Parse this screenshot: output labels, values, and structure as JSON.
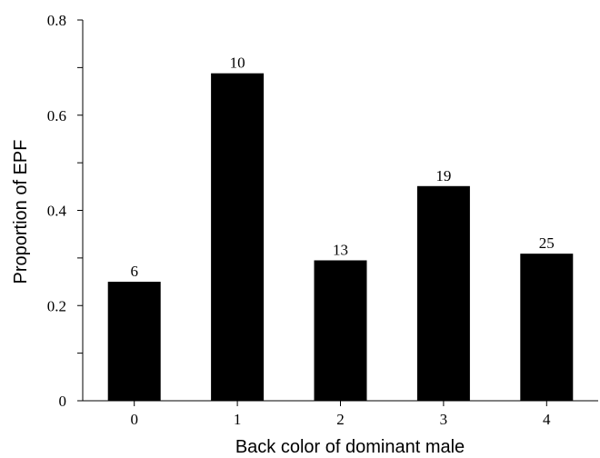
{
  "chart_data": {
    "type": "bar",
    "xlabel": "Back color of dominant male",
    "ylabel": "Proportion of EPF",
    "categories": [
      "0",
      "1",
      "2",
      "3",
      "4"
    ],
    "values": [
      0.25,
      0.688,
      0.295,
      0.451,
      0.309
    ],
    "data_labels": [
      "6",
      "10",
      "13",
      "19",
      "25"
    ],
    "ylim": [
      0,
      0.8
    ],
    "yticks": [
      "0",
      "0.2",
      "0.4",
      "0.6",
      "0.8"
    ],
    "ytick_values": [
      0,
      0.2,
      0.4,
      0.6,
      0.8
    ],
    "bar_color": "#000000",
    "grid": false,
    "legend": "none"
  }
}
